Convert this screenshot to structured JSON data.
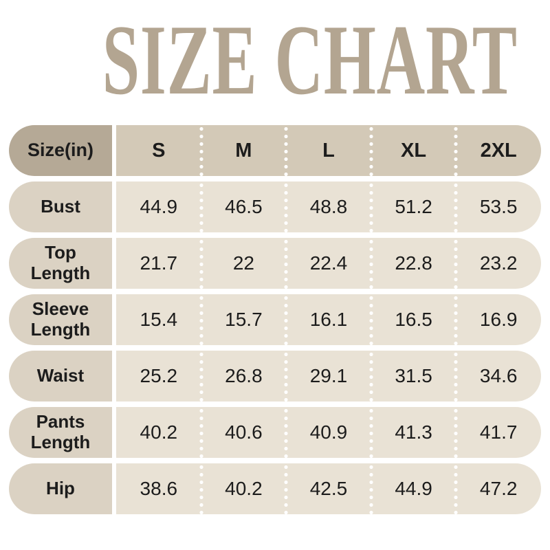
{
  "title": "SIZE CHART",
  "theme": {
    "title_color": "#b3a591",
    "header_label_bg": "#b5a996",
    "header_band_bg": "#d3c9b7",
    "row_label_bg": "#dbd2c3",
    "row_band_bg": "#e9e2d5",
    "text_color": "#1c1c1c",
    "separator_dot_color": "#ffffff",
    "background": "#ffffff"
  },
  "chart_data": {
    "type": "table",
    "title": "SIZE CHART",
    "corner_label": "Size(in)",
    "columns": [
      "S",
      "M",
      "L",
      "XL",
      "2XL"
    ],
    "rows": [
      {
        "label": "Bust",
        "values": [
          44.9,
          46.5,
          48.8,
          51.2,
          53.5
        ]
      },
      {
        "label": "Top Length",
        "values": [
          21.7,
          22,
          22.4,
          22.8,
          23.2
        ]
      },
      {
        "label": "Sleeve Length",
        "values": [
          15.4,
          15.7,
          16.1,
          16.5,
          16.9
        ]
      },
      {
        "label": "Waist",
        "values": [
          25.2,
          26.8,
          29.1,
          31.5,
          34.6
        ]
      },
      {
        "label": "Pants Length",
        "values": [
          40.2,
          40.6,
          40.9,
          41.3,
          41.7
        ]
      },
      {
        "label": "Hip",
        "values": [
          38.6,
          40.2,
          42.5,
          44.9,
          47.2
        ]
      }
    ],
    "layout": {
      "unit": "inches",
      "column_separators": "white-dotted",
      "grid": "off"
    }
  }
}
